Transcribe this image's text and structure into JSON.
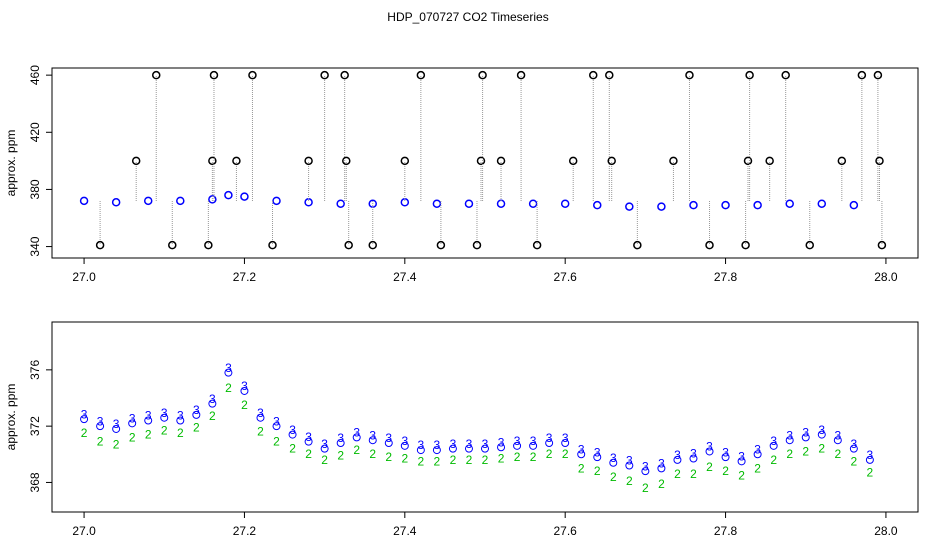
{
  "chart_data": [
    {
      "type": "scatter",
      "title": "HDP_070727  CO2 Timeseries",
      "ylabel": "approx. ppm",
      "xlim": [
        26.96,
        28.04
      ],
      "ylim": [
        332,
        465
      ],
      "xticks": [
        {
          "value": 27,
          "label": "27.0"
        },
        27.2,
        27.4,
        27.6,
        27.8,
        {
          "value": 28,
          "label": "28.0"
        }
      ],
      "yticks": [
        340,
        380,
        420,
        460
      ],
      "series": [
        {
          "color": "#0000ff",
          "spikes": false,
          "x": [
            27.0,
            27.04,
            27.08,
            27.12,
            27.16,
            27.18,
            27.2,
            27.24,
            27.28,
            27.32,
            27.36,
            27.4,
            27.44,
            27.48,
            27.52,
            27.56,
            27.6,
            27.64,
            27.68,
            27.72,
            27.76,
            27.8,
            27.84,
            27.88,
            27.92,
            27.96
          ],
          "values": [
            372,
            371,
            372,
            372,
            373,
            376,
            375,
            372,
            371,
            370,
            370,
            371,
            370,
            370,
            370,
            370,
            370,
            369,
            368,
            368,
            369,
            369,
            369,
            370,
            370,
            369
          ]
        },
        {
          "color": "#000000",
          "spikes": true,
          "x": [
            27.02,
            27.065,
            27.09,
            27.11,
            27.155,
            27.16,
            27.162,
            27.19,
            27.21,
            27.235,
            27.28,
            27.3,
            27.325,
            27.327,
            27.33,
            27.36,
            27.4,
            27.42,
            27.445,
            27.49,
            27.495,
            27.497,
            27.52,
            27.545,
            27.565,
            27.61,
            27.635,
            27.655,
            27.658,
            27.69,
            27.735,
            27.755,
            27.78,
            27.825,
            27.828,
            27.83,
            27.855,
            27.875,
            27.905,
            27.945,
            27.97,
            27.99,
            27.992,
            27.995
          ],
          "values": [
            341,
            400,
            460,
            341,
            341,
            400,
            460,
            400,
            460,
            341,
            400,
            460,
            460,
            400,
            341,
            341,
            400,
            460,
            341,
            341,
            400,
            460,
            400,
            460,
            341,
            400,
            460,
            460,
            400,
            341,
            400,
            460,
            341,
            341,
            400,
            460,
            400,
            460,
            341,
            400,
            460,
            460,
            400,
            341
          ]
        }
      ]
    },
    {
      "type": "scatter",
      "ylabel": "approx. ppm",
      "xlim": [
        26.96,
        28.04
      ],
      "ylim": [
        365.9,
        379.4
      ],
      "xticks": [
        {
          "value": 27,
          "label": "27.0"
        },
        27.2,
        27.4,
        27.6,
        27.8,
        {
          "value": 28,
          "label": "28.0"
        }
      ],
      "yticks": [
        368,
        372,
        376
      ],
      "series": [
        {
          "color": "#00bb00",
          "marker": "2",
          "x": [
            27.0,
            27.02,
            27.04,
            27.06,
            27.08,
            27.1,
            27.12,
            27.14,
            27.16,
            27.18,
            27.2,
            27.22,
            27.24,
            27.26,
            27.28,
            27.3,
            27.32,
            27.34,
            27.36,
            27.38,
            27.4,
            27.42,
            27.44,
            27.46,
            27.48,
            27.5,
            27.52,
            27.54,
            27.56,
            27.58,
            27.6,
            27.62,
            27.64,
            27.66,
            27.68,
            27.7,
            27.72,
            27.74,
            27.76,
            27.78,
            27.8,
            27.82,
            27.84,
            27.86,
            27.88,
            27.9,
            27.92,
            27.94,
            27.96,
            27.98
          ],
          "values": [
            371.8,
            371.2,
            371.0,
            371.5,
            371.7,
            372.0,
            371.8,
            372.2,
            373.0,
            375.0,
            373.8,
            371.9,
            371.2,
            370.7,
            370.3,
            369.9,
            370.2,
            370.6,
            370.3,
            370.1,
            370.0,
            369.8,
            369.8,
            369.9,
            369.9,
            369.9,
            370.0,
            370.1,
            370.1,
            370.3,
            370.3,
            369.3,
            369.1,
            368.7,
            368.4,
            367.9,
            368.2,
            368.9,
            368.9,
            369.4,
            369.1,
            368.8,
            369.3,
            369.9,
            370.3,
            370.5,
            370.7,
            370.3,
            369.8,
            369.0
          ]
        },
        {
          "color": "#0000ff",
          "marker": "3",
          "x": [
            27.0,
            27.02,
            27.04,
            27.06,
            27.08,
            27.1,
            27.12,
            27.14,
            27.16,
            27.18,
            27.2,
            27.22,
            27.24,
            27.26,
            27.28,
            27.3,
            27.32,
            27.34,
            27.36,
            27.38,
            27.4,
            27.42,
            27.44,
            27.46,
            27.48,
            27.5,
            27.52,
            27.54,
            27.56,
            27.58,
            27.6,
            27.62,
            27.64,
            27.66,
            27.68,
            27.7,
            27.72,
            27.74,
            27.76,
            27.78,
            27.8,
            27.82,
            27.84,
            27.86,
            27.88,
            27.9,
            27.92,
            27.94,
            27.96,
            27.98
          ],
          "values": [
            372.5,
            372.0,
            371.8,
            372.2,
            372.4,
            372.6,
            372.4,
            372.8,
            373.6,
            375.8,
            374.5,
            372.6,
            372.0,
            371.4,
            370.9,
            370.4,
            370.8,
            371.2,
            371.0,
            370.8,
            370.6,
            370.3,
            370.3,
            370.4,
            370.4,
            370.4,
            370.5,
            370.6,
            370.6,
            370.8,
            370.8,
            370.0,
            369.8,
            369.4,
            369.2,
            368.8,
            369.0,
            369.6,
            369.7,
            370.2,
            369.8,
            369.5,
            370.0,
            370.6,
            371.0,
            371.2,
            371.4,
            371.0,
            370.4,
            369.6
          ]
        }
      ]
    }
  ]
}
